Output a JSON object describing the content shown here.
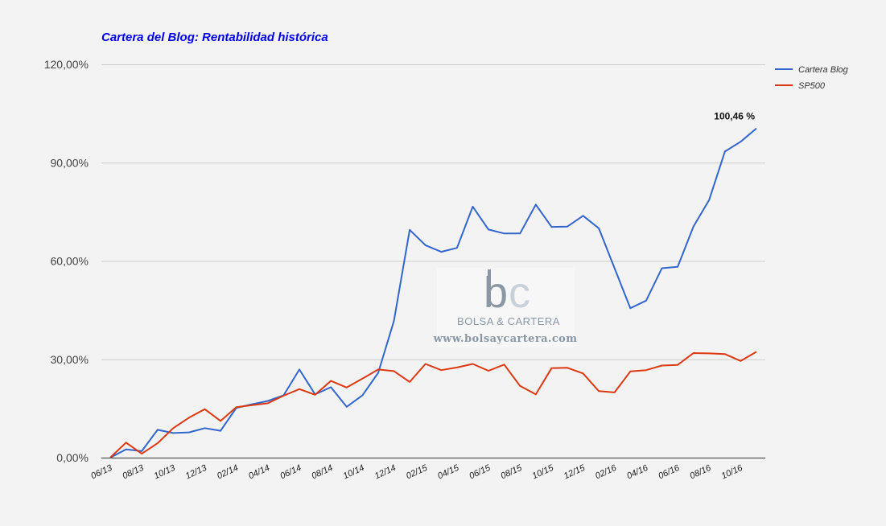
{
  "chart_data": {
    "type": "line",
    "title": "Cartera del Blog: Rentabilidad histórica",
    "xlabel": "",
    "ylabel": "",
    "ylim": [
      0,
      120
    ],
    "yticks": [
      "0,00%",
      "30,00%",
      "60,00%",
      "90,00%",
      "120,00%"
    ],
    "ytick_values": [
      0,
      30,
      60,
      90,
      120
    ],
    "grid": true,
    "legend_position": "right",
    "x_tick_labels": [
      "06/13",
      "08/13",
      "10/13",
      "12/13",
      "02/14",
      "04/14",
      "06/14",
      "08/14",
      "10/14",
      "12/14",
      "02/15",
      "04/15",
      "06/15",
      "08/15",
      "10/15",
      "12/15",
      "02/16",
      "04/16",
      "06/16",
      "08/16",
      "10/16"
    ],
    "x": [
      "06/13",
      "07/13",
      "08/13",
      "09/13",
      "10/13",
      "11/13",
      "12/13",
      "01/14",
      "02/14",
      "03/14",
      "04/14",
      "05/14",
      "06/14",
      "07/14",
      "08/14",
      "09/14",
      "10/14",
      "11/14",
      "12/14",
      "01/15",
      "02/15",
      "03/15",
      "04/15",
      "05/15",
      "06/15",
      "07/15",
      "08/15",
      "09/15",
      "10/15",
      "11/15",
      "12/15",
      "01/16",
      "02/16",
      "03/16",
      "04/16",
      "05/16",
      "06/16",
      "07/16",
      "08/16",
      "09/16",
      "10/16",
      "11/16"
    ],
    "series": [
      {
        "name": "Cartera Blog",
        "color": "#3366cc",
        "values": [
          0,
          2.5,
          2,
          8.5,
          7.5,
          7.7,
          9,
          8.2,
          15.2,
          16.3,
          17.3,
          19,
          26.9,
          19.3,
          21.5,
          15.5,
          19,
          25.9,
          41.7,
          69.5,
          64.8,
          62.8,
          64,
          76.6,
          69.6,
          68.4,
          68.4,
          77.2,
          70.4,
          70.5,
          73.8,
          70,
          57.8,
          45.6,
          47.9,
          57.8,
          58.2,
          70.5,
          78.6,
          93.4,
          96.4,
          100.46
        ]
      },
      {
        "name": "SP500",
        "color": "#dc3912",
        "values": [
          0,
          4.6,
          1.2,
          4.4,
          9,
          12.2,
          14.8,
          11.2,
          15.4,
          16,
          16.6,
          18.9,
          20.9,
          19.2,
          23.4,
          21.4,
          24.1,
          26.9,
          26.4,
          23.1,
          28.6,
          26.7,
          27.5,
          28.6,
          26.5,
          28.4,
          21.9,
          19.3,
          27.3,
          27.4,
          25.7,
          20.3,
          19.9,
          26.3,
          26.7,
          28.1,
          28.3,
          31.9,
          31.8,
          31.6,
          29.5,
          32.3
        ]
      }
    ],
    "annotations": [
      {
        "text": "100,46 %",
        "series": 0,
        "index": 41
      }
    ]
  },
  "watermark": {
    "logo_b": "b",
    "logo_c": "c",
    "name": "BOLSA & CARTERA",
    "url": "www.bolsaycartera.com"
  }
}
